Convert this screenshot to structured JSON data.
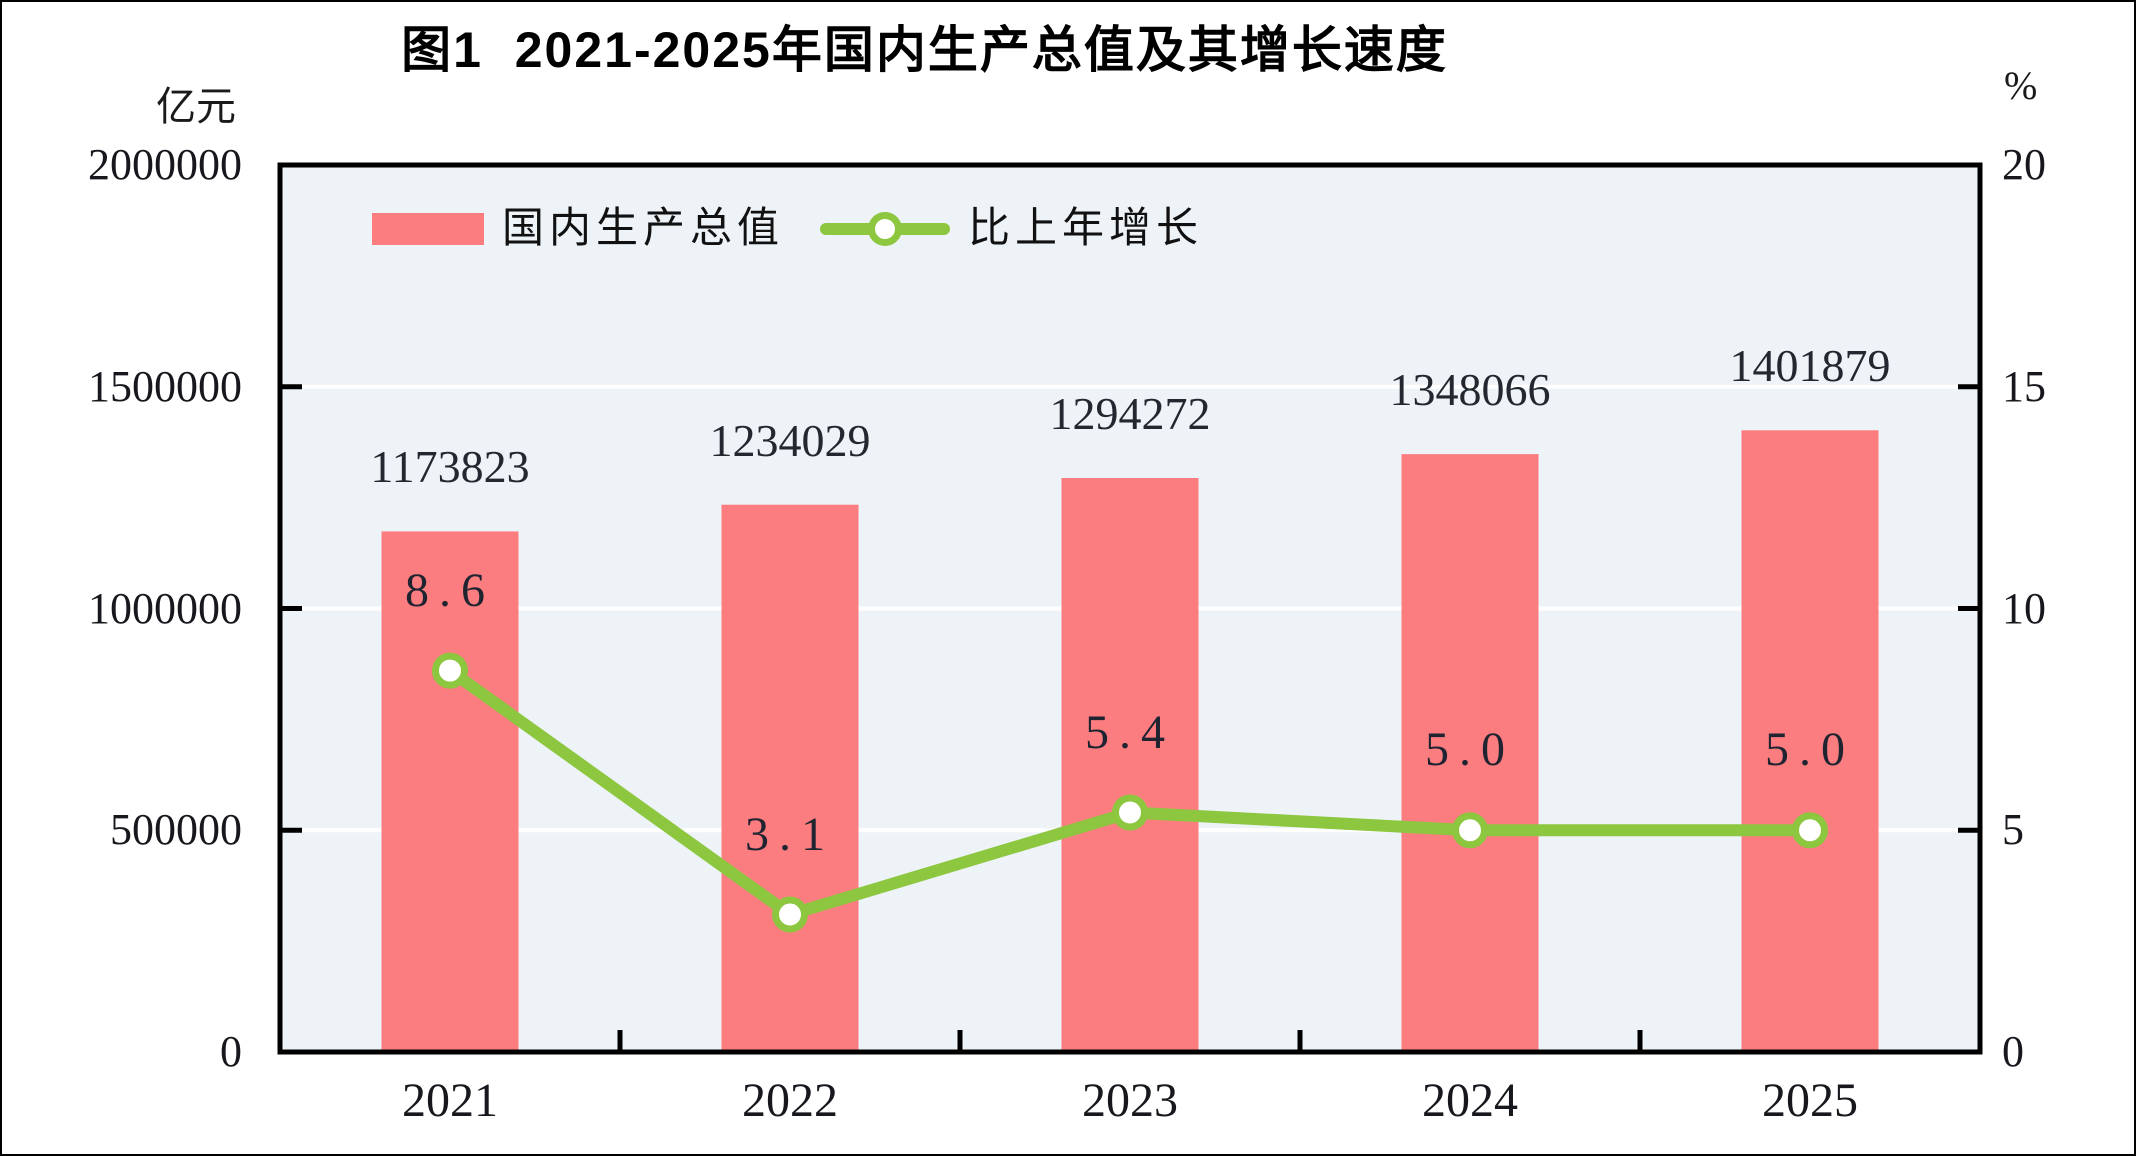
{
  "figure": {
    "title": "图1  2021-2025年国内生产总值及其增长速度",
    "left_axis_unit": "亿元",
    "right_axis_unit": "%"
  },
  "legend": {
    "items": [
      {
        "label": "国内生产总值",
        "marker": "bar-swatch"
      },
      {
        "label": "比上年增长",
        "marker": "line-marker"
      }
    ]
  },
  "chart_data": {
    "type": "combo-bar-line",
    "title": "图1  2021-2025年国内生产总值及其增长速度",
    "categories": [
      "2021",
      "2022",
      "2023",
      "2024",
      "2025"
    ],
    "series": [
      {
        "name": "国内生产总值",
        "type": "bar",
        "axis": "left",
        "unit": "亿元",
        "values": [
          1173823,
          1234029,
          1294272,
          1348066,
          1401879
        ],
        "labels": [
          "1173823",
          "1234029",
          "1294272",
          "1348066",
          "1401879"
        ]
      },
      {
        "name": "比上年增长",
        "type": "line",
        "axis": "right",
        "unit": "%",
        "values": [
          8.6,
          3.1,
          5.4,
          5.0,
          5.0
        ],
        "labels": [
          "8.6",
          "3.1",
          "5.4",
          "5.0",
          "5.0"
        ]
      }
    ],
    "left_axis": {
      "unit": "亿元",
      "min": 0,
      "max": 2000000,
      "tick_step": 500000,
      "ticks": [
        2000000,
        1500000,
        1000000,
        500000,
        0
      ]
    },
    "right_axis": {
      "unit": "%",
      "min": 0,
      "max": 20,
      "tick_step": 5,
      "ticks": [
        20,
        15,
        10,
        5,
        0
      ]
    },
    "grid": true,
    "legend_position": "top-left-inside"
  },
  "colors": {
    "bar": "#fb7d80",
    "line": "#8dc63f",
    "marker_fill": "#ffffff",
    "plot_bg": "#edf3f7",
    "grid": "#ffffff",
    "axis": "#000000",
    "text": "#20242e",
    "page_bg": "#ffffff",
    "outer_border": "#000000"
  }
}
